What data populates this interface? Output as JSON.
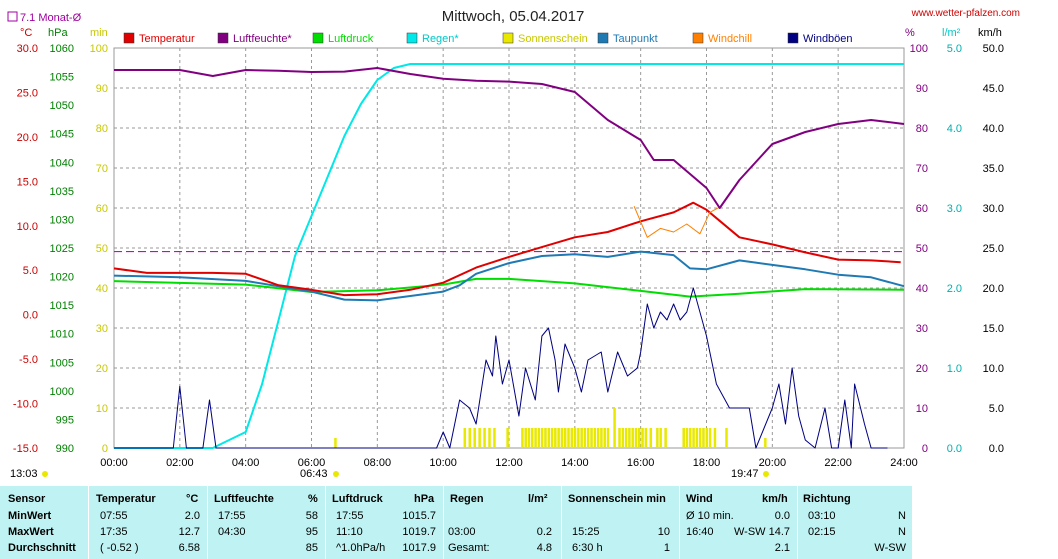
{
  "chart_data": {
    "type": "line",
    "title": "Mittwoch, 05.04.2017",
    "source": "www.wetter-pfalzen.com",
    "monthly_avg_label": "7.1 Monat-Ø",
    "monthly_avg_temp": 7.1,
    "x_ticks": [
      "00:00",
      "02:00",
      "04:00",
      "06:00",
      "08:00",
      "10:00",
      "12:00",
      "14:00",
      "16:00",
      "18:00",
      "20:00",
      "22:00",
      "24:00"
    ],
    "sunrise": "06:43",
    "sunset": "19:47",
    "sun_hours_left": "13:03",
    "axes": {
      "temp": {
        "unit": "°C",
        "min": -15,
        "max": 30,
        "ticks": [
          "30.0",
          "25.0",
          "20.0",
          "15.0",
          "10.0",
          "5.0",
          "0.0",
          "-5.0",
          "-10.0",
          "-15.0"
        ],
        "color": "#cc0000"
      },
      "pressure": {
        "unit": "hPa",
        "min": 990,
        "max": 1060,
        "ticks": [
          "1060",
          "1055",
          "1050",
          "1045",
          "1040",
          "1035",
          "1030",
          "1025",
          "1020",
          "1015",
          "1010",
          "1005",
          "1000",
          "995",
          "990"
        ],
        "color": "#008000"
      },
      "sun": {
        "unit": "min",
        "min": 0,
        "max": 100,
        "ticks": [
          "100",
          "90",
          "80",
          "70",
          "60",
          "50",
          "40",
          "30",
          "20",
          "10",
          "0"
        ],
        "color": "#c8c800"
      },
      "humidity": {
        "unit": "%",
        "min": 0,
        "max": 100,
        "ticks": [
          "100",
          "90",
          "80",
          "70",
          "60",
          "50",
          "40",
          "30",
          "20",
          "10",
          "0"
        ],
        "color": "#800080"
      },
      "rain": {
        "unit": "l/m²",
        "min": 0,
        "max": 5,
        "ticks": [
          "5.0",
          "4.0",
          "3.0",
          "2.0",
          "1.0",
          "0.0"
        ],
        "color": "#00c8c8"
      },
      "wind": {
        "unit": "km/h",
        "min": 0,
        "max": 50,
        "ticks": [
          "50.0",
          "45.0",
          "40.0",
          "35.0",
          "30.0",
          "25.0",
          "20.0",
          "15.0",
          "10.0",
          "5.0",
          "0.0"
        ],
        "color": "#000000"
      }
    },
    "legend": [
      {
        "name": "Temperatur",
        "color": "#e00000"
      },
      {
        "name": "Luftfeuchte*",
        "color": "#800080"
      },
      {
        "name": "Luftdruck",
        "color": "#00dd00"
      },
      {
        "name": "Regen*",
        "color": "#00e8e8"
      },
      {
        "name": "Sonnenschein",
        "color": "#e8e800"
      },
      {
        "name": "Taupunkt",
        "color": "#1f7ab4"
      },
      {
        "name": "Windchill",
        "color": "#ff8000"
      },
      {
        "name": "Windböen",
        "color": "#000080"
      }
    ],
    "series": [
      {
        "name": "Temperatur",
        "axis": "temp",
        "color": "#e00000",
        "points": [
          [
            0,
            5.2
          ],
          [
            1,
            4.7
          ],
          [
            2,
            4.7
          ],
          [
            3,
            4.7
          ],
          [
            4,
            4.6
          ],
          [
            5,
            3.3
          ],
          [
            6,
            2.8
          ],
          [
            7,
            2.2
          ],
          [
            8,
            2.3
          ],
          [
            9,
            2.8
          ],
          [
            10,
            3.6
          ],
          [
            11,
            5.3
          ],
          [
            12,
            6.5
          ],
          [
            13,
            7.6
          ],
          [
            14,
            8.7
          ],
          [
            15,
            9.3
          ],
          [
            16,
            10.5
          ],
          [
            17,
            11.5
          ],
          [
            17.6,
            12.6
          ],
          [
            18,
            11.8
          ],
          [
            19,
            8.7
          ],
          [
            20,
            7.9
          ],
          [
            21,
            7.0
          ],
          [
            22,
            6.2
          ],
          [
            23,
            6.1
          ],
          [
            23.9,
            5.9
          ]
        ]
      },
      {
        "name": "Luftfeuchte*",
        "axis": "humidity",
        "color": "#800080",
        "points": [
          [
            0,
            94.5
          ],
          [
            1,
            94.5
          ],
          [
            2,
            94.5
          ],
          [
            3,
            93
          ],
          [
            4,
            94.5
          ],
          [
            5,
            94.3
          ],
          [
            6,
            94
          ],
          [
            7,
            94.1
          ],
          [
            8,
            95
          ],
          [
            9,
            93.5
          ],
          [
            10,
            92.3
          ],
          [
            11,
            91.8
          ],
          [
            12,
            91.6
          ],
          [
            13,
            91
          ],
          [
            14,
            89
          ],
          [
            15,
            82
          ],
          [
            16,
            77
          ],
          [
            16.4,
            72
          ],
          [
            17,
            72
          ],
          [
            18,
            65
          ],
          [
            18.4,
            60
          ],
          [
            19,
            67
          ],
          [
            20,
            76
          ],
          [
            21,
            79
          ],
          [
            22,
            81
          ],
          [
            23,
            82
          ],
          [
            24,
            81
          ]
        ]
      },
      {
        "name": "Luftdruck",
        "axis": "pressure",
        "color": "#00dd00",
        "points": [
          [
            0,
            1019.2
          ],
          [
            2,
            1018.9
          ],
          [
            4,
            1018.6
          ],
          [
            6,
            1017.3
          ],
          [
            8,
            1017.6
          ],
          [
            10,
            1018.6
          ],
          [
            11,
            1019.6
          ],
          [
            12,
            1019.6
          ],
          [
            14,
            1018.8
          ],
          [
            16,
            1017.5
          ],
          [
            17.5,
            1016.5
          ],
          [
            19,
            1017
          ],
          [
            21,
            1017.8
          ],
          [
            24,
            1017.7
          ]
        ]
      },
      {
        "name": "Regen*",
        "axis": "rain",
        "color": "#00e8e8",
        "points": [
          [
            0,
            0
          ],
          [
            3,
            0
          ],
          [
            3.5,
            0.1
          ],
          [
            4,
            0.2
          ],
          [
            4.5,
            0.8
          ],
          [
            5,
            1.6
          ],
          [
            5.5,
            2.4
          ],
          [
            6,
            2.9
          ],
          [
            6.5,
            3.4
          ],
          [
            7,
            3.9
          ],
          [
            7.5,
            4.3
          ],
          [
            8,
            4.6
          ],
          [
            8.5,
            4.75
          ],
          [
            9,
            4.8
          ],
          [
            10,
            4.8
          ],
          [
            12,
            4.8
          ],
          [
            24,
            4.8
          ]
        ]
      },
      {
        "name": "Taupunkt",
        "axis": "temp",
        "color": "#1f7ab4",
        "points": [
          [
            0,
            4.4
          ],
          [
            2,
            4.2
          ],
          [
            4,
            3.8
          ],
          [
            6,
            2.6
          ],
          [
            7,
            1.7
          ],
          [
            8,
            1.6
          ],
          [
            9,
            2.1
          ],
          [
            10,
            2.6
          ],
          [
            10.5,
            3.3
          ],
          [
            11,
            4.6
          ],
          [
            12,
            5.8
          ],
          [
            13,
            6.6
          ],
          [
            14,
            6.8
          ],
          [
            15,
            6.5
          ],
          [
            16,
            7.1
          ],
          [
            17,
            6.7
          ],
          [
            17.5,
            5.2
          ],
          [
            18,
            5.1
          ],
          [
            19,
            6.1
          ],
          [
            20,
            5.6
          ],
          [
            21,
            5.1
          ],
          [
            22,
            4.5
          ],
          [
            23,
            4.2
          ],
          [
            24,
            3.2
          ]
        ]
      },
      {
        "name": "Windchill",
        "axis": "temp",
        "color": "#ff8000",
        "points": [
          [
            15.8,
            12.2
          ],
          [
            16.2,
            8.7
          ],
          [
            16.6,
            9.7
          ],
          [
            17,
            9.3
          ],
          [
            17.4,
            10.2
          ],
          [
            17.8,
            9.1
          ],
          [
            18.1,
            11.5
          ],
          [
            18.4,
            12.1
          ]
        ]
      },
      {
        "name": "Windböen",
        "axis": "wind",
        "color": "#000080",
        "points": [
          [
            0,
            0
          ],
          [
            1.8,
            0
          ],
          [
            2,
            7.7
          ],
          [
            2.2,
            0
          ],
          [
            2.7,
            0
          ],
          [
            2.9,
            6
          ],
          [
            3.1,
            0
          ],
          [
            9.8,
            0
          ],
          [
            10,
            2
          ],
          [
            10.2,
            0
          ],
          [
            10.5,
            6
          ],
          [
            10.8,
            5
          ],
          [
            11,
            3
          ],
          [
            11.3,
            11
          ],
          [
            11.5,
            9
          ],
          [
            11.6,
            14
          ],
          [
            11.8,
            8
          ],
          [
            12,
            11
          ],
          [
            12.3,
            4
          ],
          [
            12.5,
            10
          ],
          [
            12.8,
            6
          ],
          [
            13,
            14
          ],
          [
            13.2,
            15
          ],
          [
            13.4,
            11
          ],
          [
            13.5,
            7
          ],
          [
            13.7,
            13
          ],
          [
            14,
            10
          ],
          [
            14.2,
            7
          ],
          [
            14.4,
            11
          ],
          [
            14.8,
            12
          ],
          [
            15,
            7
          ],
          [
            15.3,
            12
          ],
          [
            15.6,
            9
          ],
          [
            15.9,
            10
          ],
          [
            16,
            12
          ],
          [
            16.2,
            18
          ],
          [
            16.4,
            15
          ],
          [
            16.6,
            17
          ],
          [
            16.8,
            16
          ],
          [
            17,
            18
          ],
          [
            17.2,
            16
          ],
          [
            17.4,
            17
          ],
          [
            17.6,
            20
          ],
          [
            17.8,
            17
          ],
          [
            18,
            14
          ],
          [
            18.3,
            8
          ],
          [
            18.7,
            5
          ],
          [
            19.3,
            5
          ],
          [
            19.5,
            0
          ],
          [
            20,
            5
          ],
          [
            20.2,
            8
          ],
          [
            20.4,
            3
          ],
          [
            20.6,
            10
          ],
          [
            20.8,
            4
          ],
          [
            21,
            1
          ],
          [
            21.3,
            0
          ],
          [
            21.6,
            5
          ],
          [
            21.8,
            0
          ],
          [
            22,
            0
          ],
          [
            22.2,
            6
          ],
          [
            22.4,
            0
          ],
          [
            22.5,
            8
          ],
          [
            22.8,
            3
          ],
          [
            23,
            0
          ],
          [
            23.5,
            0
          ]
        ]
      }
    ],
    "sunshine_bars_hours": [
      10.65,
      10.8,
      10.95,
      11.1,
      11.25,
      11.4,
      11.55,
      11.95,
      12.4,
      12.5,
      12.6,
      12.7,
      12.8,
      12.9,
      13.0,
      13.1,
      13.2,
      13.3,
      13.4,
      13.5,
      13.6,
      13.7,
      13.8,
      13.9,
      14.0,
      14.1,
      14.2,
      14.3,
      14.4,
      14.5,
      14.6,
      14.7,
      14.8,
      14.9,
      15.0,
      15.2,
      15.35,
      15.45,
      15.55,
      15.65,
      15.75,
      15.85,
      15.95,
      16.05,
      16.15,
      16.3,
      16.5,
      16.6,
      16.75,
      17.3,
      17.4,
      17.5,
      17.6,
      17.7,
      17.8,
      17.9,
      18.0,
      18.1,
      18.25,
      18.6
    ],
    "monthly_avg_line_temp": 7.1
  },
  "table": {
    "headers": {
      "sensor": "Sensor",
      "temp": "Temperatur",
      "temp_unit": "°C",
      "hum": "Luftfeuchte",
      "hum_unit": "%",
      "press": "Luftdruck",
      "press_unit": "hPa",
      "rain": "Regen",
      "rain_unit": "l/m²",
      "sun": "Sonnenschein min",
      "wind": "Wind",
      "wind_unit": "km/h",
      "dir": "Richtung"
    },
    "rows": [
      {
        "label": "MinWert",
        "temp_time": "07:55",
        "temp_val": "2.0",
        "hum_time": "17:55",
        "hum_val": "58",
        "press_time": "17:55",
        "press_val": "1015.7",
        "rain_time": "",
        "rain_val": "",
        "sun_time": "",
        "sun_val": "",
        "wind_time": "Ø 10 min.",
        "wind_val": "0.0",
        "dir_time": "03:10",
        "dir_val": "N"
      },
      {
        "label": "MaxWert",
        "temp_time": "17:35",
        "temp_val": "12.7",
        "hum_time": "04:30",
        "hum_val": "95",
        "press_time": "11:10",
        "press_val": "1019.7",
        "rain_time": "03:00",
        "rain_val": "0.2",
        "sun_time": "15:25",
        "sun_val": "10",
        "wind_time": "16:40",
        "wind_val": "W-SW 14.7",
        "dir_time": "02:15",
        "dir_val": "N"
      },
      {
        "label": "Durchschnitt",
        "temp_time": "( -0.52 )",
        "temp_val": "6.58",
        "hum_time": "",
        "hum_val": "85",
        "press_time": "^1.0hPa/h",
        "press_val": "1017.9",
        "rain_time": "Gesamt:",
        "rain_val": "4.8",
        "sun_time": "6:30 h",
        "sun_val": "1",
        "wind_time": "",
        "wind_val": "2.1",
        "dir_time": "",
        "dir_val": "W-SW"
      }
    ]
  }
}
